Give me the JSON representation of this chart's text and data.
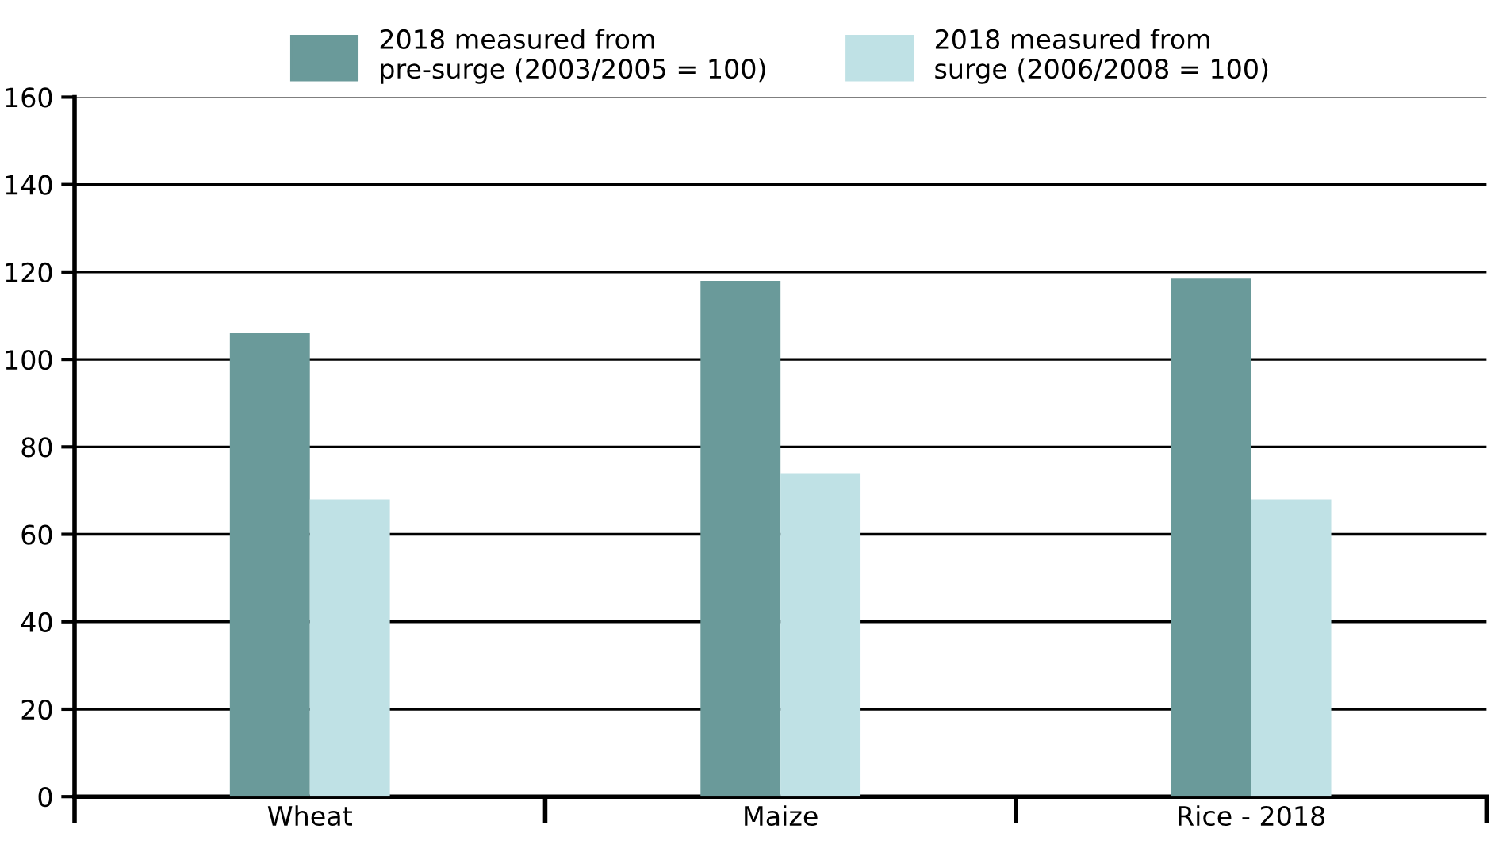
{
  "chart_data": {
    "type": "bar",
    "categories": [
      "Wheat",
      "Maize",
      "Rice - 2018"
    ],
    "series": [
      {
        "name": "2018 measured from\npre-surge (2003/2005 = 100)",
        "color": "#6a9a9a",
        "values": [
          106,
          118,
          118.5
        ]
      },
      {
        "name": "2018 measured from\nsurge (2006/2008 = 100)",
        "color": "#bfe1e5",
        "values": [
          68,
          74,
          68
        ]
      }
    ],
    "ylim": [
      0,
      160
    ],
    "yticks": [
      0,
      20,
      40,
      60,
      80,
      100,
      120,
      140,
      160
    ],
    "grid": "y",
    "legend": "top"
  }
}
